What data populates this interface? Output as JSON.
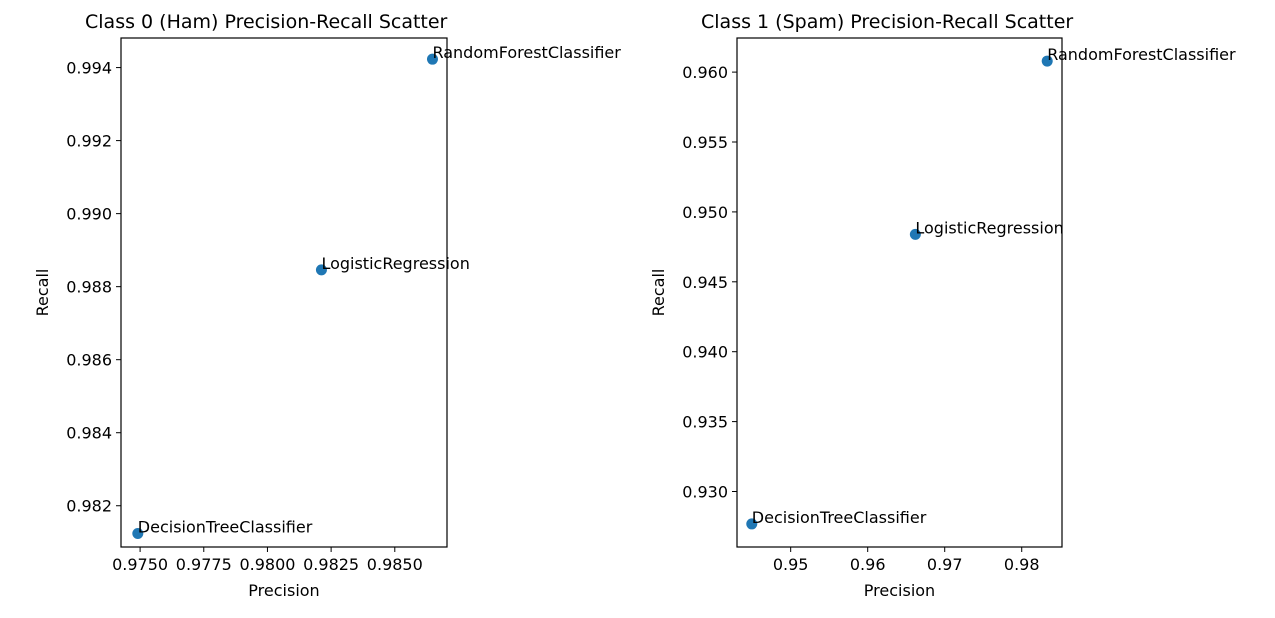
{
  "chart_data": [
    {
      "type": "scatter",
      "title": "Class 0 (Ham) Precision-Recall Scatter",
      "xlabel": "Precision",
      "ylabel": "Recall",
      "xlim": [
        0.97425,
        0.98705
      ],
      "ylim": [
        0.98087,
        0.99481
      ],
      "xticks": [
        0.975,
        0.9775,
        0.98,
        0.9825,
        0.985
      ],
      "xtick_labels": [
        "0.9750",
        "0.9775",
        "0.9800",
        "0.9825",
        "0.9850"
      ],
      "yticks": [
        0.982,
        0.984,
        0.986,
        0.988,
        0.99,
        0.992,
        0.994
      ],
      "ytick_labels": [
        "0.982",
        "0.984",
        "0.986",
        "0.988",
        "0.990",
        "0.992",
        "0.994"
      ],
      "grid": false,
      "color": "#1f77b4",
      "points": [
        {
          "label": "DecisionTreeClassifier",
          "x": 0.97491,
          "y": 0.98124
        },
        {
          "label": "LogisticRegression",
          "x": 0.98212,
          "y": 0.98846
        },
        {
          "label": "RandomForestClassifier",
          "x": 0.98648,
          "y": 0.99423
        }
      ]
    },
    {
      "type": "scatter",
      "title": "Class 1 (Spam) Precision-Recall Scatter",
      "xlabel": "Precision",
      "ylabel": "Recall",
      "xlim": [
        0.94303,
        0.98523
      ],
      "ylim": [
        0.92603,
        0.96244
      ],
      "xticks": [
        0.95,
        0.96,
        0.97,
        0.98
      ],
      "xtick_labels": [
        "0.95",
        "0.96",
        "0.97",
        "0.98"
      ],
      "yticks": [
        0.93,
        0.935,
        0.94,
        0.945,
        0.95,
        0.955,
        0.96
      ],
      "ytick_labels": [
        "0.930",
        "0.935",
        "0.940",
        "0.945",
        "0.950",
        "0.955",
        "0.960"
      ],
      "grid": false,
      "color": "#1f77b4",
      "points": [
        {
          "label": "DecisionTreeClassifier",
          "x": 0.94495,
          "y": 0.92768
        },
        {
          "label": "LogisticRegression",
          "x": 0.96619,
          "y": 0.94839
        },
        {
          "label": "RandomForestClassifier",
          "x": 0.98331,
          "y": 0.96079
        }
      ]
    }
  ]
}
